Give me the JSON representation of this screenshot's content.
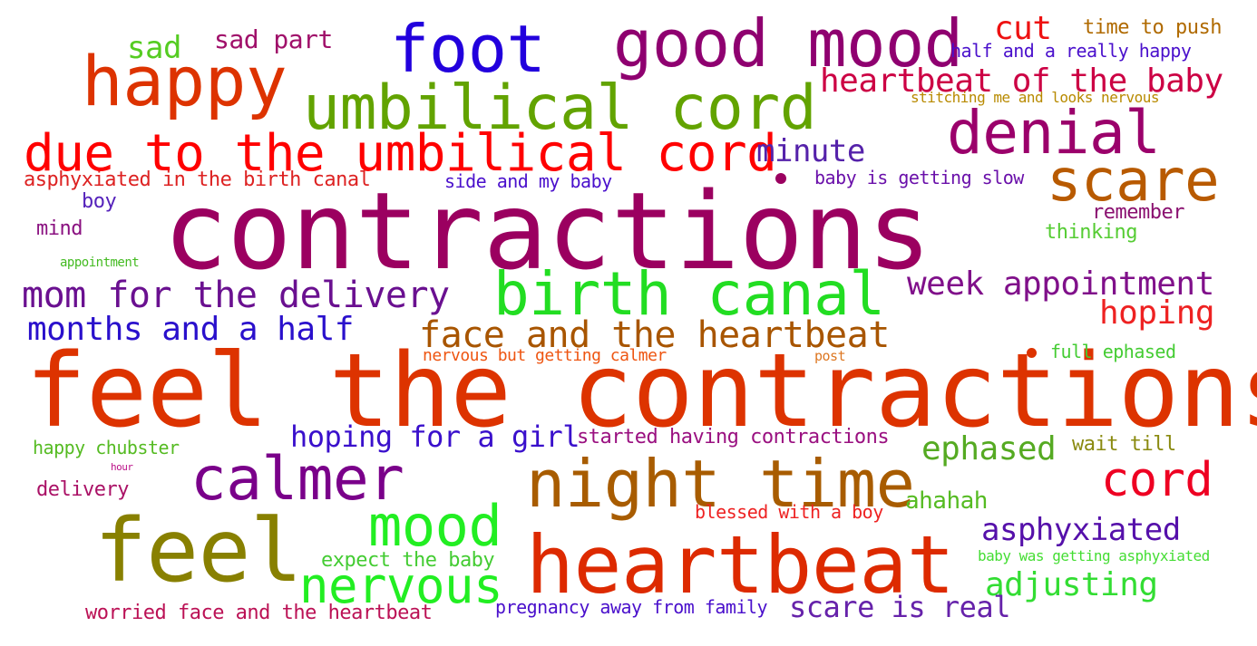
{
  "words": [
    {
      "text": "contractions",
      "color": "#9b0060"
    },
    {
      "text": "feel the contractions",
      "color": "#dd3300"
    },
    {
      "text": "heartbeat",
      "color": "#dd2a00"
    },
    {
      "text": "feel",
      "color": "#888000"
    },
    {
      "text": "night time",
      "color": "#a85c00"
    },
    {
      "text": "good mood",
      "color": "#8f0070"
    },
    {
      "text": "happy",
      "color": "#dd3300"
    },
    {
      "text": "foot",
      "color": "#2200dd"
    },
    {
      "text": "umbilical cord",
      "color": "#62a300"
    },
    {
      "text": "birth canal",
      "color": "#22dd22"
    },
    {
      "text": "due to the umbilical cord",
      "color": "#ff0000"
    },
    {
      "text": "denial",
      "color": "#9b006b"
    },
    {
      "text": "scare",
      "color": "#b85a00"
    },
    {
      "text": "calmer",
      "color": "#7a008a"
    },
    {
      "text": "mood",
      "color": "#22ee22"
    },
    {
      "text": "nervous",
      "color": "#22ee22"
    },
    {
      "text": "cord",
      "color": "#ee0022"
    },
    {
      "text": "mom for the delivery",
      "color": "#6a1090"
    },
    {
      "text": "face and the heartbeat",
      "color": "#a85500"
    },
    {
      "text": "heartbeat of the baby",
      "color": "#cc0044"
    },
    {
      "text": "week appointment",
      "color": "#80108a"
    },
    {
      "text": "months and a half",
      "color": "#2a10cc"
    },
    {
      "text": "minute",
      "color": "#5522aa"
    },
    {
      "text": "hoping",
      "color": "#ee2222"
    },
    {
      "text": "hoping for a girl",
      "color": "#3a10cc"
    },
    {
      "text": "asphyxiated",
      "color": "#5510aa"
    },
    {
      "text": "adjusting",
      "color": "#33dd33"
    },
    {
      "text": "ephased",
      "color": "#55aa22"
    },
    {
      "text": "scare is real",
      "color": "#6622aa"
    },
    {
      "text": "sad",
      "color": "#55cc22"
    },
    {
      "text": "sad part",
      "color": "#a0106a"
    },
    {
      "text": "cut",
      "color": "#ee1111"
    },
    {
      "text": "time to push",
      "color": "#b06a00"
    },
    {
      "text": "half and a really happy",
      "color": "#4a10cc"
    },
    {
      "text": "stitching me and looks nervous",
      "color": "#b88a00"
    },
    {
      "text": "asphyxiated in the birth canal",
      "color": "#dd2222"
    },
    {
      "text": "side and my baby",
      "color": "#4a10cc"
    },
    {
      "text": "baby is getting slow",
      "color": "#6a10aa"
    },
    {
      "text": "boy",
      "color": "#5522bb"
    },
    {
      "text": "mind",
      "color": "#8a1080"
    },
    {
      "text": "remember",
      "color": "#8a1070"
    },
    {
      "text": "thinking",
      "color": "#55cc33"
    },
    {
      "text": "appointment",
      "color": "#44bb22"
    },
    {
      "text": "nervous but getting calmer",
      "color": "#ee5511"
    },
    {
      "text": "post",
      "color": "#dd7722"
    },
    {
      "text": "full ephased",
      "color": "#44cc33"
    },
    {
      "text": "happy chubster",
      "color": "#55bb22"
    },
    {
      "text": "hour",
      "color": "#bb1188"
    },
    {
      "text": "delivery",
      "color": "#aa1166"
    },
    {
      "text": "started having contractions",
      "color": "#9a1080"
    },
    {
      "text": "wait till",
      "color": "#8a8a10"
    },
    {
      "text": "ahahah",
      "color": "#55bb22"
    },
    {
      "text": "blessed with a boy",
      "color": "#ee2222"
    },
    {
      "text": "expect the baby",
      "color": "#44cc33"
    },
    {
      "text": "baby was getting asphyxiated",
      "color": "#44dd33"
    },
    {
      "text": "worried face and the heartbeat",
      "color": "#bb1155"
    },
    {
      "text": "pregnancy away from family",
      "color": "#4a10cc"
    }
  ],
  "dots": [
    {
      "color": "#9b0060"
    },
    {
      "color": "#dd3300"
    }
  ]
}
